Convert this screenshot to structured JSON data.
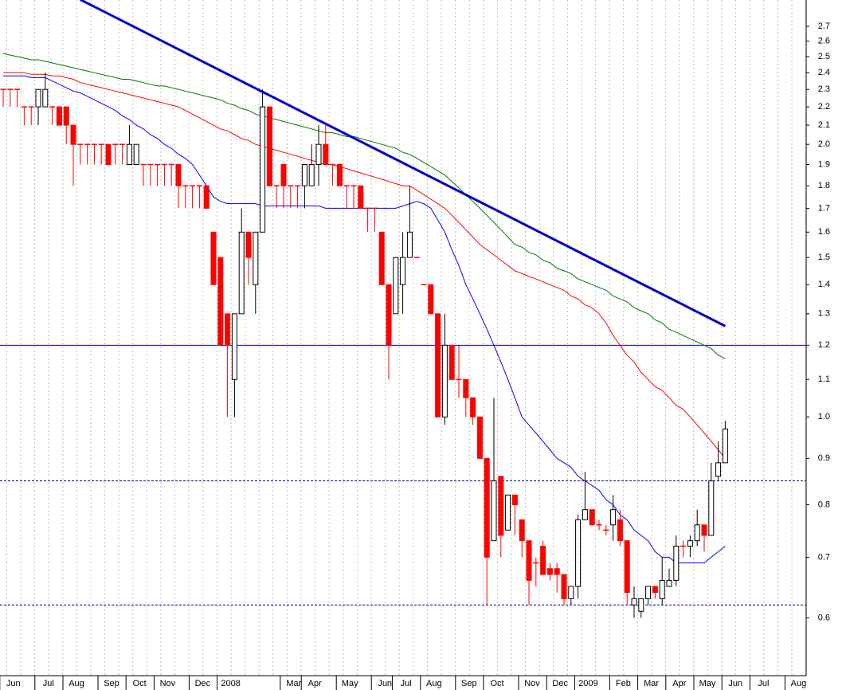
{
  "chart_data": {
    "type": "candlestick",
    "categories": [
      null,
      "Jun",
      null,
      null,
      null,
      null,
      "Jul",
      null,
      null,
      null,
      "Aug",
      null,
      null,
      null,
      null,
      "Sep",
      null,
      null,
      null,
      "Oct",
      null,
      null,
      null,
      "Nov",
      null,
      null,
      null,
      null,
      "Dec",
      null,
      null,
      null,
      "2008",
      null,
      null,
      null,
      null,
      null,
      null,
      null,
      null,
      "Mar",
      null,
      null,
      "Apr",
      null,
      null,
      null,
      null,
      "May",
      null,
      null,
      null,
      null,
      "Jun",
      null,
      null,
      "Jul",
      null,
      null,
      null,
      "Aug",
      null,
      null,
      null,
      null,
      "Sep",
      null,
      null,
      null,
      "Oct",
      null,
      null,
      null,
      null,
      "Nov",
      null,
      null,
      null,
      "Dec",
      null,
      null,
      null,
      "2009",
      null,
      null,
      null,
      null,
      "Feb",
      null,
      null,
      null,
      "Mar",
      null,
      null,
      null,
      "Apr",
      null,
      null,
      null,
      "May",
      null,
      null,
      null,
      "Jun",
      null,
      null,
      null,
      "Jul",
      null,
      null,
      null,
      null,
      "Aug",
      null
    ],
    "ohlc": {
      "up_color": "#ffffff",
      "down_color": "#ff0000",
      "open": [
        2.3,
        2.3,
        2.3,
        2.2,
        2.2,
        2.2,
        2.2,
        2.2,
        2.2,
        2.2,
        2.1,
        2.0,
        2.0,
        2.0,
        2.0,
        2.0,
        2.0,
        2.0,
        1.9,
        1.9,
        1.9,
        1.9,
        1.9,
        1.9,
        1.9,
        1.9,
        1.8,
        1.8,
        1.8,
        1.8,
        1.6,
        1.5,
        1.3,
        1.1,
        1.3,
        1.6,
        1.4,
        1.6,
        2.2,
        1.8,
        1.9,
        1.8,
        1.8,
        1.8,
        1.8,
        1.9,
        2.0,
        1.9,
        1.9,
        1.8,
        1.8,
        1.8,
        1.7,
        1.7,
        1.6,
        1.4,
        1.3,
        1.4,
        1.5,
        1.5,
        1.4,
        1.4,
        1.3,
        1.0,
        1.2,
        1.1,
        1.1,
        1.05,
        1.0,
        0.9,
        0.73,
        0.86,
        0.75,
        0.82,
        0.77,
        0.73,
        0.69,
        0.72,
        0.68,
        0.68,
        0.67,
        0.63,
        0.65,
        0.77,
        0.79,
        0.76,
        0.75,
        0.76,
        0.77,
        0.73,
        0.62,
        0.61,
        0.63,
        0.65,
        0.63,
        0.65,
        0.66,
        0.72,
        0.72,
        0.73,
        0.76,
        0.74,
        0.86,
        0.89,
        null,
        null,
        null,
        null,
        null,
        null,
        null,
        null,
        null,
        null,
        null
      ],
      "high": [
        2.3,
        2.3,
        2.3,
        2.2,
        2.2,
        2.3,
        2.4,
        2.2,
        2.2,
        2.2,
        2.1,
        2.0,
        2.0,
        2.0,
        2.0,
        2.0,
        2.0,
        2.0,
        2.1,
        2.0,
        1.9,
        1.9,
        1.9,
        1.9,
        1.9,
        1.9,
        1.8,
        1.8,
        1.8,
        1.8,
        1.6,
        1.5,
        1.3,
        1.3,
        1.7,
        1.6,
        1.6,
        2.3,
        2.2,
        1.8,
        1.9,
        1.8,
        1.8,
        1.9,
        2.0,
        2.1,
        2.1,
        1.9,
        1.9,
        1.8,
        1.8,
        1.8,
        1.7,
        1.7,
        1.6,
        1.4,
        1.5,
        1.6,
        1.8,
        1.5,
        1.4,
        1.4,
        1.3,
        1.3,
        1.2,
        1.2,
        1.1,
        1.05,
        1.0,
        0.9,
        1.05,
        0.86,
        0.82,
        0.82,
        0.77,
        0.73,
        0.7,
        0.73,
        0.69,
        0.69,
        0.67,
        0.65,
        0.78,
        0.87,
        0.79,
        0.77,
        0.76,
        0.82,
        0.79,
        0.73,
        0.65,
        0.63,
        0.65,
        0.65,
        0.7,
        0.68,
        0.74,
        0.73,
        0.74,
        0.79,
        0.76,
        0.89,
        0.94,
        0.99,
        null,
        null,
        null,
        null,
        null,
        null,
        null,
        null,
        null,
        null,
        null
      ],
      "low": [
        2.2,
        2.2,
        2.2,
        2.1,
        2.1,
        2.1,
        2.2,
        2.1,
        2.1,
        2.0,
        1.8,
        1.9,
        1.9,
        1.9,
        1.9,
        1.9,
        1.9,
        1.9,
        1.9,
        1.9,
        1.8,
        1.8,
        1.8,
        1.8,
        1.8,
        1.7,
        1.7,
        1.7,
        1.7,
        1.7,
        1.4,
        1.2,
        1.0,
        1.0,
        1.3,
        1.4,
        1.3,
        1.6,
        1.8,
        1.7,
        1.7,
        1.7,
        1.7,
        1.7,
        1.8,
        1.8,
        1.9,
        1.8,
        1.8,
        1.7,
        1.7,
        1.7,
        1.6,
        1.6,
        1.4,
        1.1,
        1.3,
        1.3,
        1.5,
        1.5,
        1.4,
        1.3,
        1.0,
        0.98,
        1.1,
        1.05,
        1.0,
        0.98,
        0.9,
        0.62,
        0.73,
        0.7,
        0.75,
        0.74,
        0.7,
        0.62,
        0.65,
        0.67,
        0.66,
        0.64,
        0.62,
        0.62,
        0.63,
        0.77,
        0.76,
        0.75,
        0.74,
        0.73,
        0.72,
        0.62,
        0.6,
        0.6,
        0.62,
        0.63,
        0.62,
        0.65,
        0.65,
        0.7,
        0.7,
        0.72,
        0.71,
        0.74,
        0.85,
        0.89,
        null,
        null,
        null,
        null,
        null,
        null,
        null,
        null,
        null,
        null,
        null
      ],
      "close": [
        2.3,
        2.3,
        2.3,
        2.2,
        2.2,
        2.3,
        2.3,
        2.2,
        2.1,
        2.1,
        2.0,
        2.0,
        2.0,
        2.0,
        2.0,
        1.9,
        2.0,
        2.0,
        2.0,
        2.0,
        1.9,
        1.9,
        1.9,
        1.9,
        1.9,
        1.8,
        1.8,
        1.8,
        1.8,
        1.7,
        1.4,
        1.2,
        1.2,
        1.3,
        1.6,
        1.5,
        1.6,
        2.2,
        1.8,
        1.8,
        1.8,
        1.8,
        1.8,
        1.9,
        1.9,
        2.0,
        1.9,
        1.9,
        1.8,
        1.8,
        1.8,
        1.7,
        1.7,
        1.7,
        1.4,
        1.2,
        1.5,
        1.5,
        1.6,
        1.5,
        1.4,
        1.3,
        1.0,
        1.2,
        1.1,
        1.1,
        1.05,
        1.0,
        0.9,
        0.7,
        0.85,
        0.74,
        0.82,
        0.8,
        0.73,
        0.66,
        0.69,
        0.67,
        0.67,
        0.67,
        0.63,
        0.65,
        0.77,
        0.79,
        0.76,
        0.76,
        0.75,
        0.79,
        0.73,
        0.64,
        0.63,
        0.63,
        0.65,
        0.64,
        0.66,
        0.66,
        0.72,
        0.72,
        0.73,
        0.76,
        0.74,
        0.85,
        0.89,
        0.97,
        null,
        null,
        null,
        null,
        null,
        null,
        null,
        null,
        null,
        null,
        null
      ]
    },
    "series": [
      {
        "color": "#0000ff",
        "values": [
          2.38,
          2.38,
          2.38,
          2.38,
          2.37,
          2.37,
          2.37,
          2.35,
          2.33,
          2.31,
          2.29,
          2.28,
          2.26,
          2.24,
          2.22,
          2.2,
          2.18,
          2.15,
          2.13,
          2.1,
          2.08,
          2.05,
          2.03,
          2.0,
          1.98,
          1.95,
          1.93,
          1.9,
          1.85,
          1.8,
          1.75,
          1.73,
          1.72,
          1.72,
          1.72,
          1.72,
          1.72,
          1.71,
          1.71,
          1.71,
          1.71,
          1.71,
          1.71,
          1.71,
          1.71,
          1.71,
          1.7,
          1.7,
          1.7,
          1.7,
          1.7,
          1.7,
          1.7,
          1.7,
          1.7,
          1.7,
          1.7,
          1.71,
          1.72,
          1.73,
          1.72,
          1.7,
          1.65,
          1.6,
          1.53,
          1.47,
          1.4,
          1.35,
          1.3,
          1.25,
          1.2,
          1.15,
          1.1,
          1.05,
          1.0,
          0.98,
          0.96,
          0.94,
          0.92,
          0.9,
          0.89,
          0.88,
          0.86,
          0.85,
          0.84,
          0.83,
          0.81,
          0.8,
          0.78,
          0.77,
          0.75,
          0.74,
          0.73,
          0.71,
          0.7,
          0.7,
          0.69,
          0.69,
          0.69,
          0.69,
          0.69,
          0.7,
          0.71,
          0.72,
          null,
          null,
          null,
          null,
          null,
          null,
          null,
          null,
          null,
          null,
          null
        ]
      },
      {
        "color": "#ff0000",
        "values": [
          2.4,
          2.4,
          2.4,
          2.4,
          2.39,
          2.39,
          2.39,
          2.38,
          2.38,
          2.37,
          2.36,
          2.34,
          2.33,
          2.32,
          2.31,
          2.3,
          2.29,
          2.28,
          2.27,
          2.26,
          2.25,
          2.24,
          2.23,
          2.22,
          2.21,
          2.2,
          2.18,
          2.16,
          2.14,
          2.12,
          2.1,
          2.08,
          2.07,
          2.05,
          2.03,
          2.02,
          2.0,
          1.99,
          1.98,
          1.97,
          1.96,
          1.95,
          1.94,
          1.93,
          1.92,
          1.91,
          1.9,
          1.9,
          1.89,
          1.88,
          1.87,
          1.86,
          1.85,
          1.84,
          1.83,
          1.82,
          1.81,
          1.8,
          1.8,
          1.78,
          1.76,
          1.74,
          1.72,
          1.7,
          1.67,
          1.64,
          1.61,
          1.58,
          1.55,
          1.53,
          1.51,
          1.49,
          1.47,
          1.45,
          1.44,
          1.43,
          1.42,
          1.41,
          1.4,
          1.39,
          1.38,
          1.36,
          1.35,
          1.33,
          1.32,
          1.3,
          1.27,
          1.23,
          1.2,
          1.17,
          1.15,
          1.12,
          1.1,
          1.08,
          1.07,
          1.05,
          1.03,
          1.02,
          1.0,
          0.98,
          0.96,
          0.94,
          0.92,
          0.9,
          null,
          null,
          null,
          null,
          null,
          null,
          null,
          null,
          null,
          null,
          null
        ]
      },
      {
        "color": "#007700",
        "values": [
          2.52,
          2.51,
          2.5,
          2.49,
          2.48,
          2.48,
          2.47,
          2.46,
          2.45,
          2.44,
          2.43,
          2.42,
          2.41,
          2.4,
          2.39,
          2.38,
          2.37,
          2.36,
          2.36,
          2.35,
          2.34,
          2.33,
          2.32,
          2.32,
          2.31,
          2.3,
          2.29,
          2.28,
          2.27,
          2.26,
          2.25,
          2.24,
          2.22,
          2.21,
          2.19,
          2.18,
          2.16,
          2.15,
          2.14,
          2.13,
          2.12,
          2.11,
          2.1,
          2.09,
          2.08,
          2.07,
          2.06,
          2.06,
          2.05,
          2.04,
          2.04,
          2.03,
          2.02,
          2.01,
          2.0,
          1.99,
          1.98,
          1.96,
          1.95,
          1.93,
          1.91,
          1.89,
          1.87,
          1.85,
          1.82,
          1.79,
          1.76,
          1.73,
          1.7,
          1.67,
          1.64,
          1.61,
          1.58,
          1.55,
          1.54,
          1.52,
          1.51,
          1.49,
          1.48,
          1.46,
          1.45,
          1.44,
          1.42,
          1.41,
          1.4,
          1.39,
          1.38,
          1.36,
          1.35,
          1.34,
          1.32,
          1.31,
          1.3,
          1.28,
          1.27,
          1.25,
          1.24,
          1.23,
          1.22,
          1.21,
          1.2,
          1.19,
          1.17,
          1.16,
          null,
          null,
          null,
          null,
          null,
          null,
          null,
          null,
          null,
          null,
          null
        ]
      }
    ],
    "trendline": {
      "color": "#0000cc",
      "x": [
        11,
        103
      ],
      "values": [
        2.89,
        1.26
      ]
    },
    "hlines": [
      {
        "value": 1.2,
        "color": "#0000ff",
        "style": "solid"
      },
      {
        "value": 0.85,
        "color": "#0000aa",
        "style": "dashed"
      },
      {
        "value": 0.62,
        "color": "#0000aa",
        "style": "dashed"
      }
    ],
    "log_scale": true,
    "grid": true,
    "ylim": [
      0.518,
      2.887
    ],
    "yticks": [
      2.7,
      2.6,
      2.5,
      2.4,
      2.3,
      2.2,
      2.1,
      {
        "value": 2,
        "label": "2.0"
      },
      1.9,
      1.8,
      1.7,
      1.6,
      1.5,
      1.4,
      1.3,
      1.2,
      1.1,
      {
        "value": 1,
        "label": "1.0"
      },
      0.9,
      0.8,
      0.7,
      0.6
    ]
  }
}
